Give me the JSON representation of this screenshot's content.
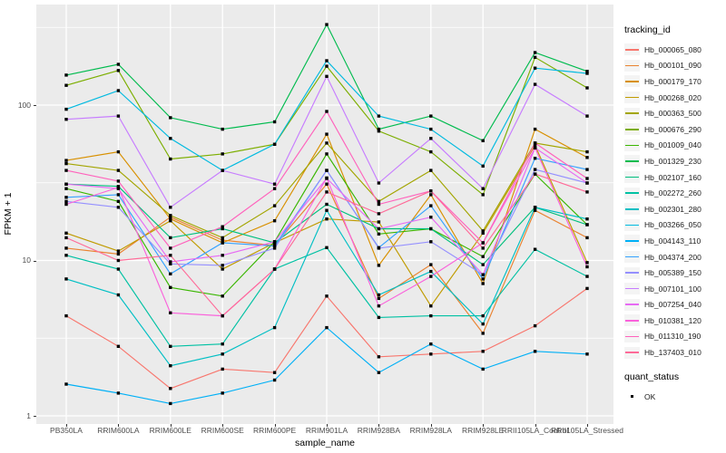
{
  "figure": {
    "background": "#FFFFFF",
    "panel_background": "#EBEBEB",
    "gridline_color": "#FFFFFF",
    "axis_text_color": "#4D4D4D",
    "point_color": "#000000"
  },
  "chart_data": {
    "type": "line",
    "xlabel": "sample_name",
    "ylabel": "FPKM + 1",
    "y_scale": "log10",
    "y_ticks": [
      1,
      10,
      100
    ],
    "y_minor_ticks": [
      3.1623,
      31.623,
      316.23
    ],
    "ylim": [
      1,
      444
    ],
    "grid": "on",
    "legend_position": "right",
    "categories": [
      "PB350LA",
      "RRIM600LA",
      "RRIM600LE",
      "RRIM600SE",
      "RRIM600PE",
      "RRIM901LA",
      "RRIM928BA",
      "RRIM928LA",
      "RRIM928LE",
      "RRII105LA_Control",
      "RRII105LA_Stressed"
    ],
    "legend": {
      "color_title": "tracking_id",
      "shape_title": "quant_status",
      "shape_items": [
        {
          "label": "OK",
          "marker": "black-square"
        }
      ]
    },
    "series": [
      {
        "name": "Hb_000065_080",
        "color": "#F8766D",
        "values": [
          4.4,
          2.8,
          1.5,
          2.0,
          1.9,
          5.9,
          2.4,
          2.5,
          2.6,
          3.8,
          6.6
        ]
      },
      {
        "name": "Hb_000101_090",
        "color": "#EA8331",
        "values": [
          12,
          11,
          19,
          13.5,
          12.5,
          31,
          5.7,
          9.4,
          3.4,
          21,
          14
        ]
      },
      {
        "name": "Hb_000179_170",
        "color": "#D89000",
        "values": [
          44,
          50,
          18.5,
          13,
          18,
          65,
          9.3,
          26.5,
          7.1,
          70,
          46
        ]
      },
      {
        "name": "Hb_000268_020",
        "color": "#C09B00",
        "values": [
          15,
          11.5,
          18,
          8.8,
          13,
          18.5,
          17.7,
          5.1,
          15,
          55,
          9.7
        ]
      },
      {
        "name": "Hb_000363_500",
        "color": "#A3A500",
        "values": [
          42,
          38,
          19.5,
          14,
          22.5,
          57,
          24,
          38,
          15.5,
          57,
          50
        ]
      },
      {
        "name": "Hb_000676_290",
        "color": "#7CAE00",
        "values": [
          134,
          167,
          45,
          48.5,
          56,
          178,
          68,
          50,
          26.5,
          203,
          129
        ]
      },
      {
        "name": "Hb_001009_040",
        "color": "#39B600",
        "values": [
          29,
          24,
          6.7,
          5.9,
          13.2,
          48.5,
          14.8,
          16,
          10.6,
          36,
          17
        ]
      },
      {
        "name": "Hb_001329_230",
        "color": "#00BB4E",
        "values": [
          156,
          183,
          83,
          70,
          78,
          330,
          70,
          85,
          59,
          218,
          165
        ]
      },
      {
        "name": "Hb_002107_160",
        "color": "#00BF7D",
        "values": [
          31,
          30,
          14,
          16,
          13,
          23,
          16,
          16,
          9.4,
          22,
          17
        ]
      },
      {
        "name": "Hb_002272_260",
        "color": "#00C1A3",
        "values": [
          10.8,
          8.8,
          2.8,
          2.9,
          8.8,
          12.1,
          4.3,
          4.4,
          4.4,
          11.8,
          7.9
        ]
      },
      {
        "name": "Hb_002301_280",
        "color": "#00BFC4",
        "values": [
          7.6,
          6.0,
          2.1,
          2.5,
          3.7,
          21,
          6.0,
          8.5,
          3.9,
          22,
          18.5
        ]
      },
      {
        "name": "Hb_003266_050",
        "color": "#00BAE0",
        "values": [
          94,
          124,
          61,
          38,
          56,
          193,
          85,
          70,
          40.5,
          173,
          160
        ]
      },
      {
        "name": "Hb_004143_110",
        "color": "#00B0F6",
        "values": [
          1.6,
          1.4,
          1.2,
          1.4,
          1.7,
          3.7,
          1.9,
          2.9,
          2.0,
          2.6,
          2.5
        ]
      },
      {
        "name": "Hb_004374_200",
        "color": "#35A2FF",
        "values": [
          25.5,
          26.5,
          8.2,
          13,
          12.4,
          38,
          12.1,
          22.5,
          7.6,
          45.5,
          38.5
        ]
      },
      {
        "name": "Hb_005389_150",
        "color": "#9590FF",
        "values": [
          24,
          22,
          9.5,
          9.3,
          12,
          38,
          12,
          13.2,
          8.1,
          38.5,
          31.5
        ]
      },
      {
        "name": "Hb_007101_100",
        "color": "#C77CFF",
        "values": [
          81,
          85,
          22,
          38,
          31,
          153,
          31.5,
          61,
          29,
          136,
          85
        ]
      },
      {
        "name": "Hb_007254_040",
        "color": "#E76BF3",
        "values": [
          31,
          29,
          9.8,
          10.8,
          13.2,
          33.7,
          16,
          19,
          8.1,
          53,
          31.5
        ]
      },
      {
        "name": "Hb_010381_120",
        "color": "#FA62DB",
        "values": [
          23,
          29.5,
          4.6,
          4.4,
          8.8,
          34,
          5.1,
          7.9,
          13,
          53,
          9.1
        ]
      },
      {
        "name": "Hb_011310_190",
        "color": "#FF62BC",
        "values": [
          38,
          32.4,
          12,
          16.5,
          29,
          91,
          23,
          28,
          13,
          57,
          33.7
        ]
      },
      {
        "name": "Hb_137403_010",
        "color": "#FF6A98",
        "values": [
          14,
          10,
          10.8,
          4.4,
          8.8,
          27.6,
          20,
          28,
          12,
          36,
          27.6
        ]
      }
    ]
  }
}
